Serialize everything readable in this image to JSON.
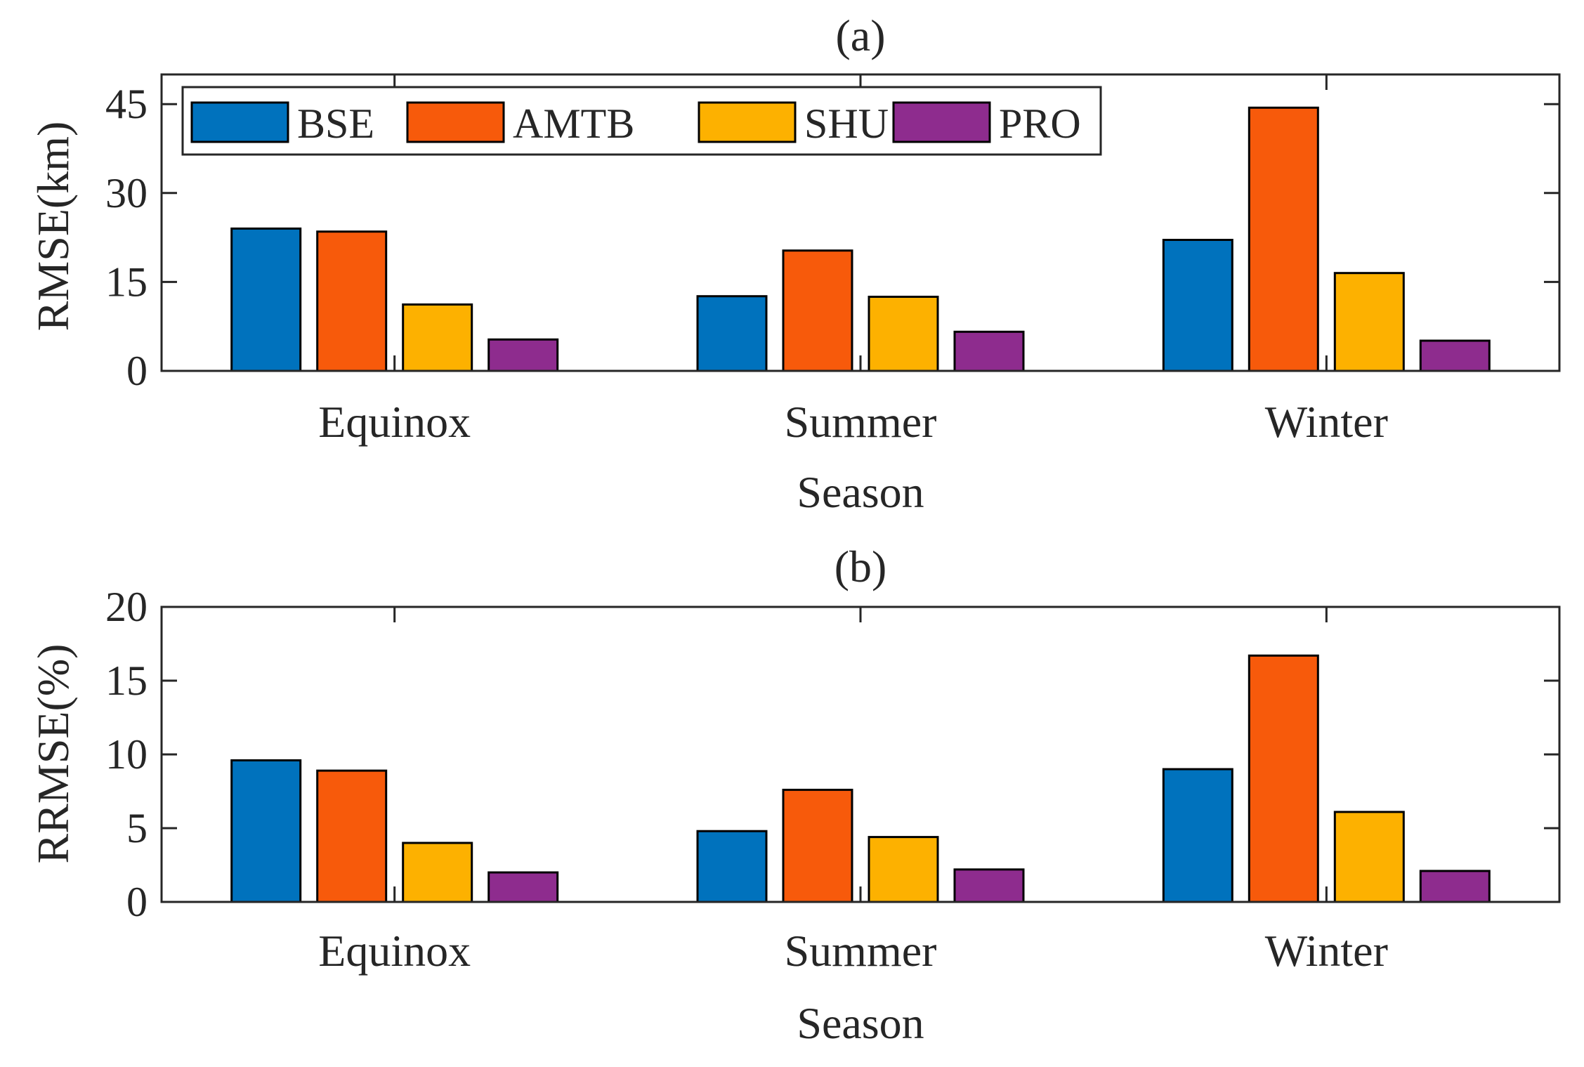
{
  "chart_data": [
    {
      "type": "bar",
      "title": "(a)",
      "xlabel": "Season",
      "ylabel": "RMSE(km)",
      "categories": [
        "Equinox",
        "Summer",
        "Winter"
      ],
      "ylim": [
        0,
        50
      ],
      "yticks": [
        0,
        15,
        30,
        45
      ],
      "ytick_labels": [
        "0",
        "15",
        "30",
        "45"
      ],
      "legend": "top-left",
      "series": [
        {
          "name": "BSE",
          "color": "#0072BD",
          "values": [
            24.0,
            12.6,
            22.1
          ]
        },
        {
          "name": "AMTB",
          "color": "#F75A0B",
          "values": [
            23.5,
            20.3,
            44.4
          ]
        },
        {
          "name": "SHU",
          "color": "#FDB100",
          "values": [
            11.2,
            12.5,
            16.5
          ]
        },
        {
          "name": "PRO",
          "color": "#8E2C8E",
          "values": [
            5.3,
            6.6,
            5.1
          ]
        }
      ]
    },
    {
      "type": "bar",
      "title": "(b)",
      "xlabel": "Season",
      "ylabel": "RRMSE(%)",
      "categories": [
        "Equinox",
        "Summer",
        "Winter"
      ],
      "ylim": [
        0,
        20
      ],
      "yticks": [
        0,
        5,
        10,
        15,
        20
      ],
      "ytick_labels": [
        "0",
        "5",
        "10",
        "15",
        "20"
      ],
      "series": [
        {
          "name": "BSE",
          "color": "#0072BD",
          "values": [
            9.6,
            4.8,
            9.0
          ]
        },
        {
          "name": "AMTB",
          "color": "#F75A0B",
          "values": [
            8.9,
            7.6,
            16.7
          ]
        },
        {
          "name": "SHU",
          "color": "#FDB100",
          "values": [
            4.0,
            4.4,
            6.1
          ]
        },
        {
          "name": "PRO",
          "color": "#8E2C8E",
          "values": [
            2.0,
            2.2,
            2.1
          ]
        }
      ]
    }
  ]
}
